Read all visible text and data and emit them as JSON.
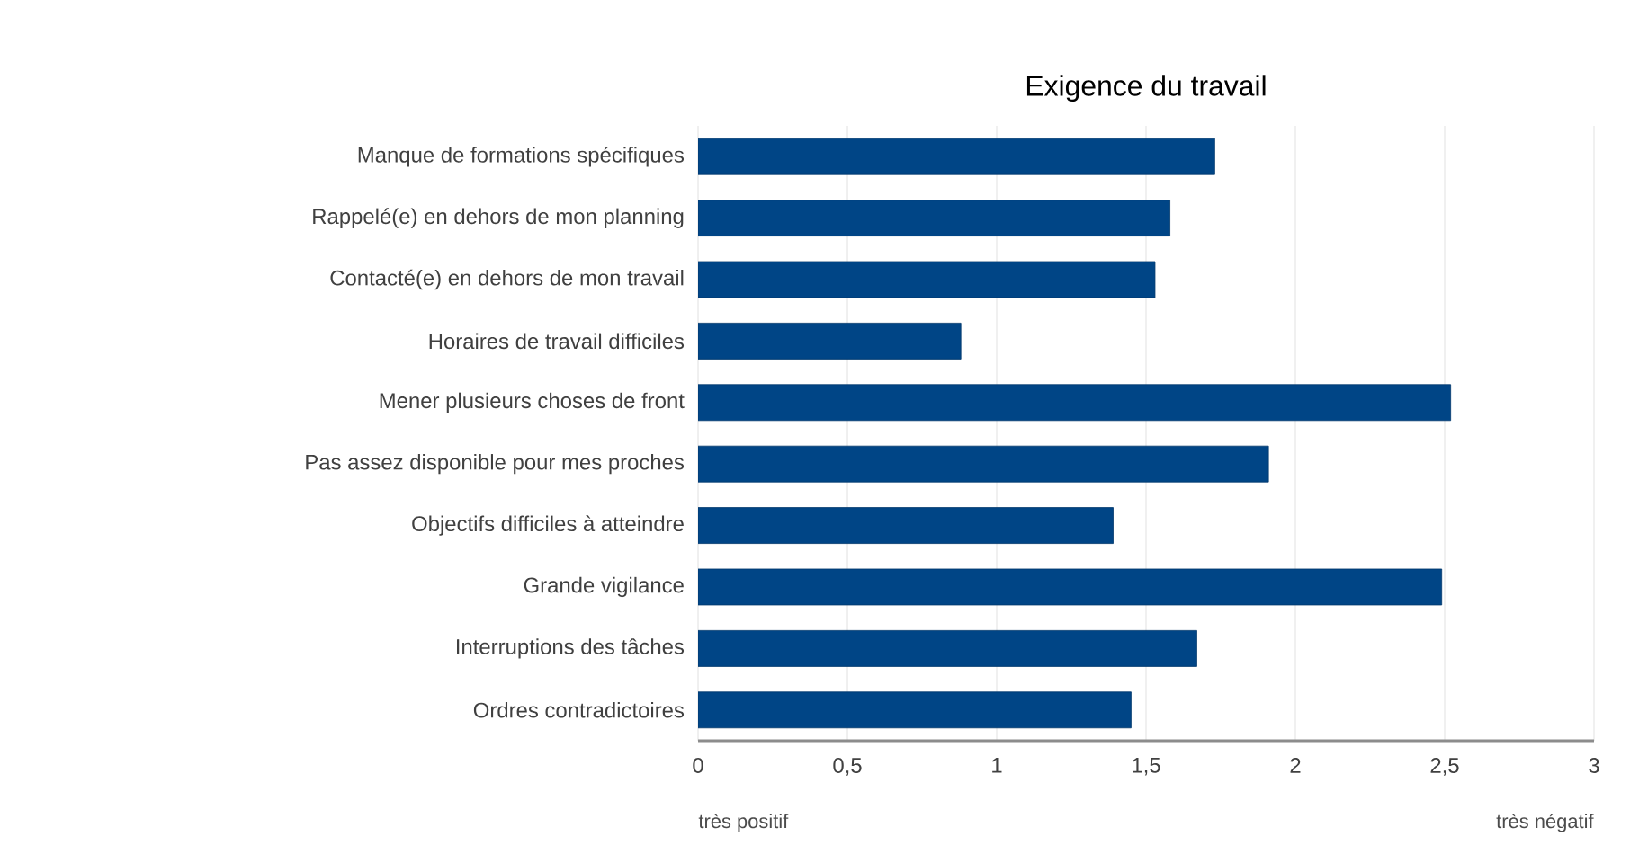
{
  "chart_data": {
    "type": "bar",
    "orientation": "horizontal",
    "title": "Exigence du travail",
    "categories": [
      "Manque de formations spécifiques",
      "Rappelé(e) en dehors de mon planning",
      "Contacté(e) en dehors de mon travail",
      "Horaires de travail difficiles",
      "Mener plusieurs choses de front",
      "Pas assez disponible pour mes proches",
      "Objectifs difficiles à atteindre",
      "Grande vigilance",
      "Interruptions des tâches",
      "Ordres contradictoires"
    ],
    "values": [
      1.73,
      1.58,
      1.53,
      0.88,
      2.52,
      1.91,
      1.39,
      2.49,
      1.67,
      1.45
    ],
    "color": "#004586",
    "xlim": [
      0,
      3
    ],
    "xticks": [
      0,
      {
        "value": 0.5,
        "label": "0,5"
      },
      1,
      {
        "value": 1.5,
        "label": "1,5"
      },
      2,
      {
        "value": 2.5,
        "label": "2,5"
      },
      3
    ],
    "grid": "x",
    "annotations": [
      "très positif",
      "très négatif"
    ]
  }
}
